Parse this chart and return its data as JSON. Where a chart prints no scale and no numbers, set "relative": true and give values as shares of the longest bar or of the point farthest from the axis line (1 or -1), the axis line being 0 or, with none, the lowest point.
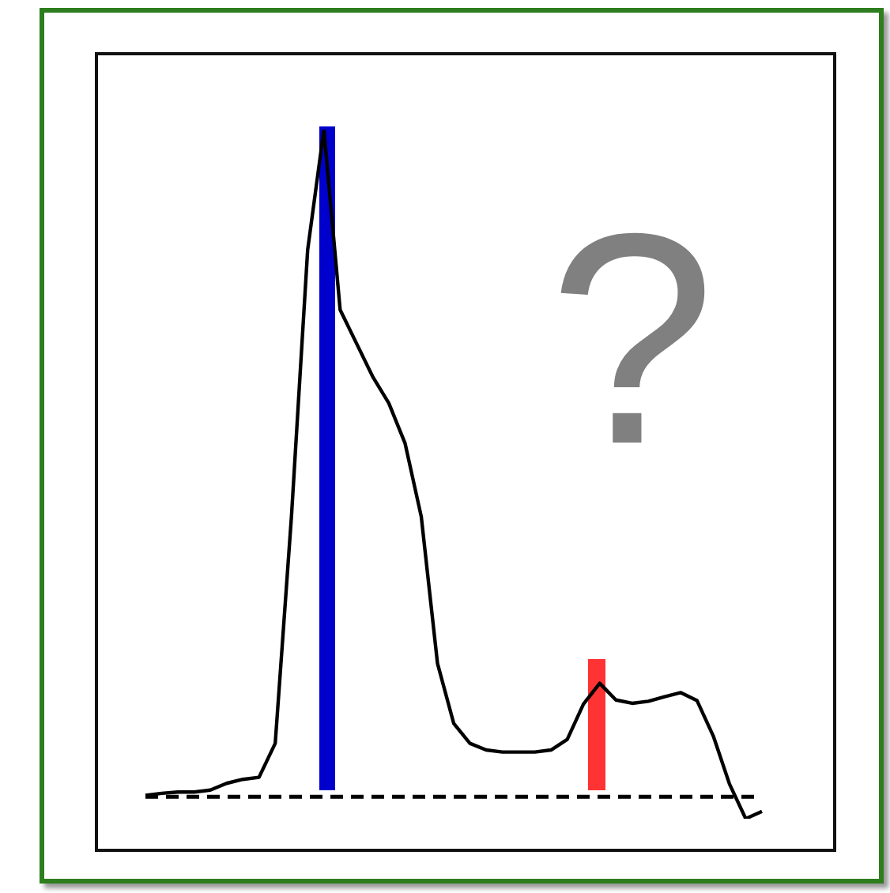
{
  "chart_data": {
    "type": "line",
    "relative": true,
    "marker": "none",
    "categories": [
      null,
      null,
      null,
      null,
      null,
      null,
      null,
      null,
      null,
      null,
      null,
      null,
      null,
      null,
      null,
      null,
      null,
      null,
      null,
      null,
      null,
      null,
      null,
      null,
      null,
      null,
      null,
      null,
      null,
      null,
      null,
      null,
      null,
      null,
      null,
      null,
      null,
      null,
      null
    ],
    "series": [
      {
        "color": "#000000",
        "values": [
          0.002,
          0.005,
          0.007,
          0.007,
          0.01,
          0.02,
          0.026,
          0.029,
          0.08,
          0.42,
          0.82,
          1.0,
          0.73,
          0.68,
          0.63,
          0.59,
          0.53,
          0.42,
          0.2,
          0.11,
          0.08,
          0.07,
          0.067,
          0.067,
          0.067,
          0.07,
          0.086,
          0.139,
          0.17,
          0.145,
          0.14,
          0.143,
          0.15,
          0.156,
          0.144,
          0.091,
          0.019,
          -0.033,
          -0.022
        ]
      }
    ],
    "ref_lines": [
      {
        "axis": "y",
        "value": 0,
        "color": "#000000",
        "line_style": "dashed"
      }
    ],
    "annotations": [
      "?"
    ]
  }
}
